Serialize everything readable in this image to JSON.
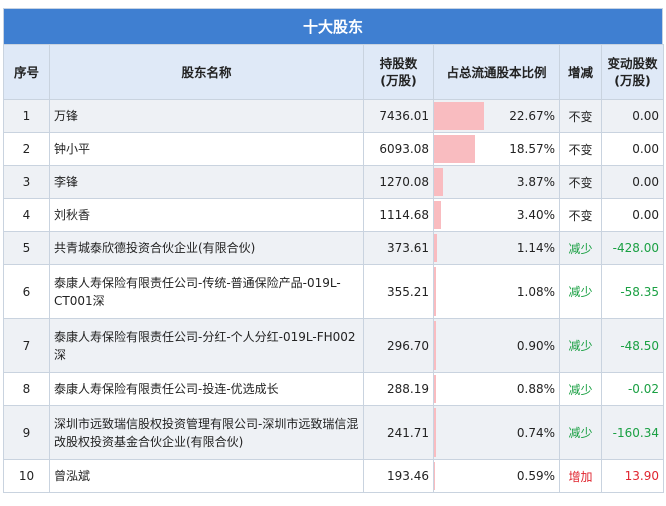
{
  "title": "十大股东",
  "headers": {
    "idx": "序号",
    "name": "股东名称",
    "shares": "持股数\n(万股)",
    "ratio": "占总流通股本比例",
    "change_type": "增减",
    "change_amount": "变动股数\n(万股)"
  },
  "rows": [
    {
      "idx": "1",
      "name": "万锋",
      "shares": "7436.01",
      "ratio": "22.67%",
      "ratio_value": 22.67,
      "change_type": "不变",
      "change_kind": "same",
      "change_amount": "0.00"
    },
    {
      "idx": "2",
      "name": "钟小平",
      "shares": "6093.08",
      "ratio": "18.57%",
      "ratio_value": 18.57,
      "change_type": "不变",
      "change_kind": "same",
      "change_amount": "0.00"
    },
    {
      "idx": "3",
      "name": "李锋",
      "shares": "1270.08",
      "ratio": "3.87%",
      "ratio_value": 3.87,
      "change_type": "不变",
      "change_kind": "same",
      "change_amount": "0.00"
    },
    {
      "idx": "4",
      "name": "刘秋香",
      "shares": "1114.68",
      "ratio": "3.40%",
      "ratio_value": 3.4,
      "change_type": "不变",
      "change_kind": "same",
      "change_amount": "0.00"
    },
    {
      "idx": "5",
      "name": "共青城泰欣德投资合伙企业(有限合伙)",
      "shares": "373.61",
      "ratio": "1.14%",
      "ratio_value": 1.14,
      "change_type": "减少",
      "change_kind": "dec",
      "change_amount": "-428.00"
    },
    {
      "idx": "6",
      "name": "泰康人寿保险有限责任公司-传统-普通保险产品-019L-CT001深",
      "shares": "355.21",
      "ratio": "1.08%",
      "ratio_value": 1.08,
      "change_type": "减少",
      "change_kind": "dec",
      "change_amount": "-58.35"
    },
    {
      "idx": "7",
      "name": "泰康人寿保险有限责任公司-分红-个人分红-019L-FH002深",
      "shares": "296.70",
      "ratio": "0.90%",
      "ratio_value": 0.9,
      "change_type": "减少",
      "change_kind": "dec",
      "change_amount": "-48.50"
    },
    {
      "idx": "8",
      "name": "泰康人寿保险有限责任公司-投连-优选成长",
      "shares": "288.19",
      "ratio": "0.88%",
      "ratio_value": 0.88,
      "change_type": "减少",
      "change_kind": "dec",
      "change_amount": "-0.02"
    },
    {
      "idx": "9",
      "name": "深圳市远致瑞信股权投资管理有限公司-深圳市远致瑞信混改股权投资基金合伙企业(有限合伙)",
      "shares": "241.71",
      "ratio": "0.74%",
      "ratio_value": 0.74,
      "change_type": "减少",
      "change_kind": "dec",
      "change_amount": "-160.34"
    },
    {
      "idx": "10",
      "name": "曾泓斌",
      "shares": "193.46",
      "ratio": "0.59%",
      "ratio_value": 0.59,
      "change_type": "增加",
      "change_kind": "inc",
      "change_amount": "13.90"
    }
  ],
  "colors": {
    "header_bg": "#3f7fd1",
    "subheader_bg": "#dfe9f7",
    "bar": "#f9bcc0",
    "decrease": "#1aa043",
    "increase": "#e0252f"
  }
}
